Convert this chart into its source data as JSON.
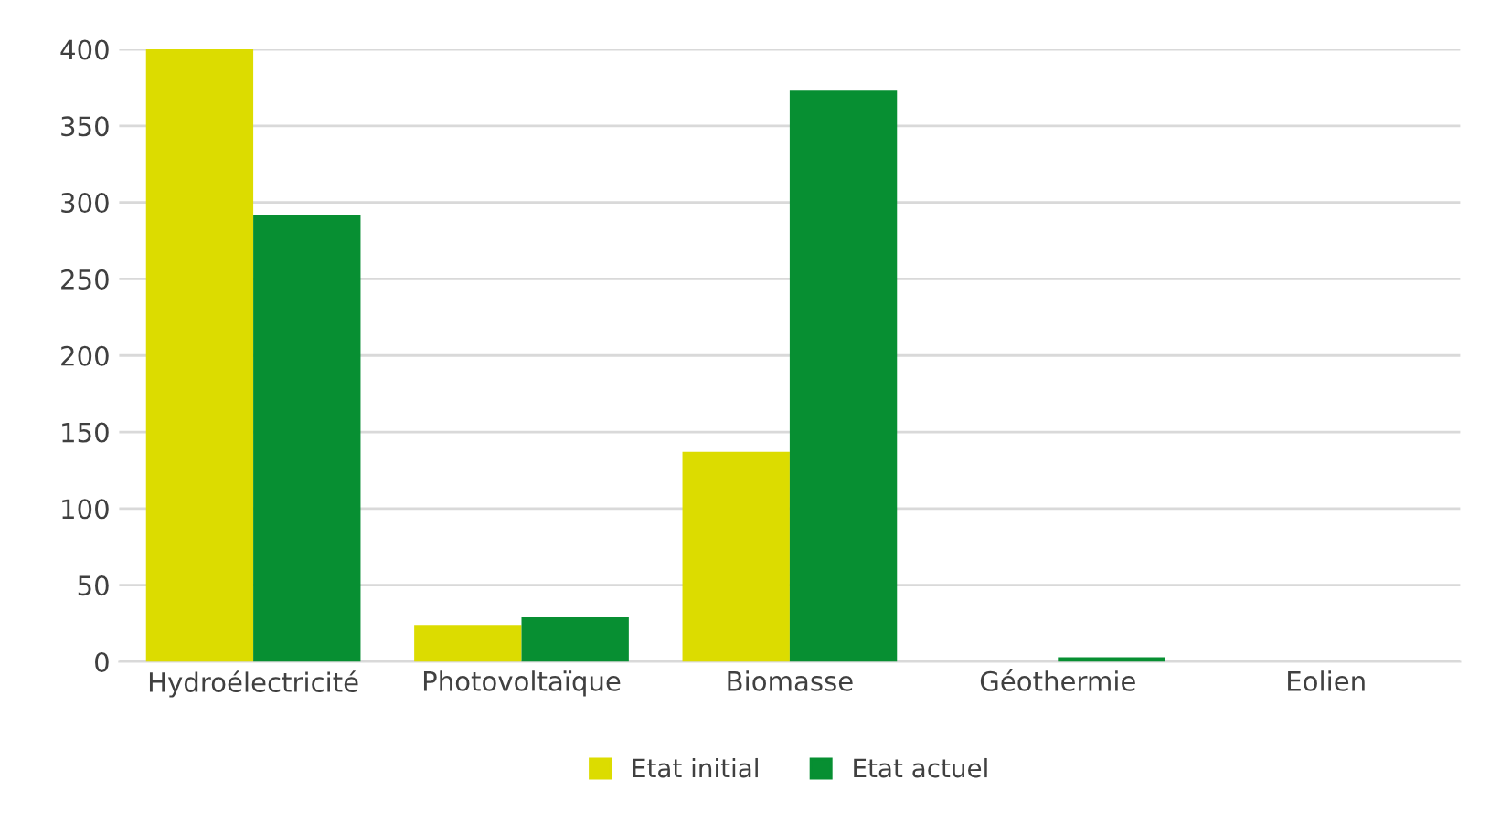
{
  "chart_data": {
    "type": "bar",
    "categories": [
      "Hydroélectricité",
      "Photovoltaïque",
      "Biomasse",
      "Géothermie",
      "Eolien"
    ],
    "series": [
      {
        "name": "Etat initial",
        "color": "#dcdc00",
        "values": [
          400,
          24,
          137,
          0,
          0
        ]
      },
      {
        "name": "Etat actuel",
        "color": "#078f32",
        "values": [
          292,
          29,
          373,
          3,
          0
        ]
      }
    ],
    "ylim": [
      0,
      400
    ],
    "yticks": [
      0,
      50,
      100,
      150,
      200,
      250,
      300,
      350,
      400
    ],
    "grid": "y",
    "legend": "bottom"
  }
}
